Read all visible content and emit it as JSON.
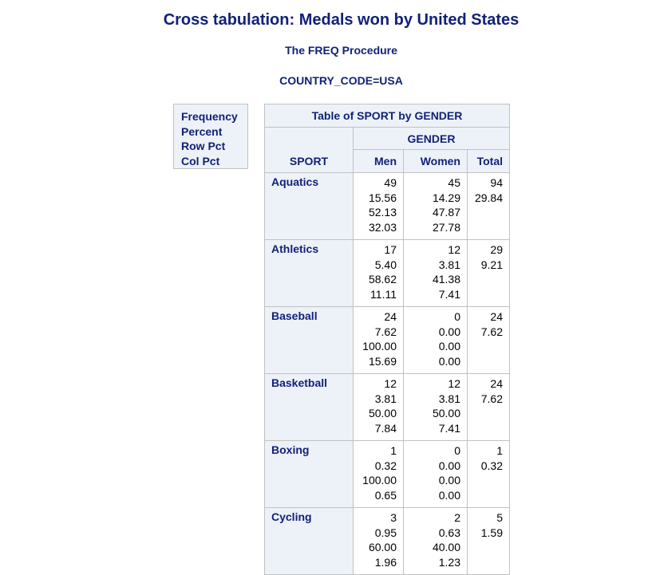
{
  "report": {
    "title": "Cross tabulation: Medals won by United States",
    "procedure": "The FREQ Procedure",
    "byline": "COUNTRY_CODE=USA"
  },
  "legend": [
    "Frequency",
    "Percent",
    "Row Pct",
    "Col Pct"
  ],
  "table": {
    "caption": "Table of SPORT by GENDER",
    "col_var": "GENDER",
    "row_var": "SPORT",
    "columns": [
      "Men",
      "Women",
      "Total"
    ],
    "rows": [
      {
        "sport": "Aquatics",
        "men": [
          "49",
          "15.56",
          "52.13",
          "32.03"
        ],
        "women": [
          "45",
          "14.29",
          "47.87",
          "27.78"
        ],
        "total": [
          "94",
          "29.84"
        ]
      },
      {
        "sport": "Athletics",
        "men": [
          "17",
          "5.40",
          "58.62",
          "11.11"
        ],
        "women": [
          "12",
          "3.81",
          "41.38",
          "7.41"
        ],
        "total": [
          "29",
          "9.21"
        ]
      },
      {
        "sport": "Baseball",
        "men": [
          "24",
          "7.62",
          "100.00",
          "15.69"
        ],
        "women": [
          "0",
          "0.00",
          "0.00",
          "0.00"
        ],
        "total": [
          "24",
          "7.62"
        ]
      },
      {
        "sport": "Basketball",
        "men": [
          "12",
          "3.81",
          "50.00",
          "7.84"
        ],
        "women": [
          "12",
          "3.81",
          "50.00",
          "7.41"
        ],
        "total": [
          "24",
          "7.62"
        ]
      },
      {
        "sport": "Boxing",
        "men": [
          "1",
          "0.32",
          "100.00",
          "0.65"
        ],
        "women": [
          "0",
          "0.00",
          "0.00",
          "0.00"
        ],
        "total": [
          "1",
          "0.32"
        ]
      },
      {
        "sport": "Cycling",
        "men": [
          "3",
          "0.95",
          "60.00",
          "1.96"
        ],
        "women": [
          "2",
          "0.63",
          "40.00",
          "1.23"
        ],
        "total": [
          "5",
          "1.59"
        ]
      }
    ]
  }
}
